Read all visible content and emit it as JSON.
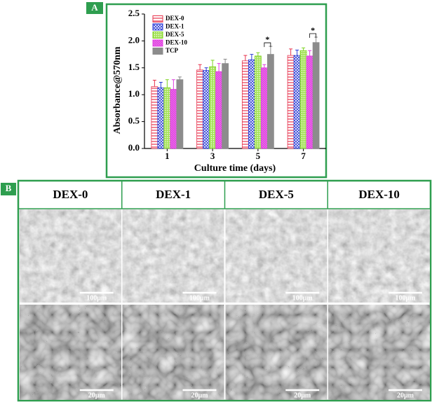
{
  "chart_data": {
    "type": "bar",
    "x_label": "Culture time (days)",
    "y_label": "Absorbance@570nm",
    "categories": [
      "1",
      "3",
      "5",
      "7"
    ],
    "series": [
      {
        "name": "DEX-0",
        "color": "#e8344e",
        "values": [
          1.15,
          1.46,
          1.63,
          1.73
        ],
        "errors": [
          0.12,
          0.1,
          0.1,
          0.12
        ]
      },
      {
        "name": "DEX-1",
        "color": "#2a3bd6",
        "values": [
          1.13,
          1.45,
          1.65,
          1.73
        ],
        "errors": [
          0.1,
          0.05,
          0.1,
          0.1
        ]
      },
      {
        "name": "DEX-5",
        "color": "#7ed321",
        "values": [
          1.13,
          1.52,
          1.72,
          1.82
        ],
        "errors": [
          0.15,
          0.12,
          0.06,
          0.05
        ]
      },
      {
        "name": "DEX-10",
        "color": "#e040e0",
        "values": [
          1.1,
          1.43,
          1.5,
          1.72
        ],
        "errors": [
          0.18,
          0.15,
          0.06,
          0.1
        ]
      },
      {
        "name": "TCP",
        "color": "#8c8c8c",
        "values": [
          1.28,
          1.58,
          1.75,
          1.97
        ],
        "errors": [
          0.05,
          0.08,
          0.15,
          0.1
        ]
      }
    ],
    "ylim": [
      0,
      2.5
    ],
    "yticks": [
      {
        "value": 0,
        "label": "0.0"
      },
      {
        "value": 0.5,
        "label": "0.5"
      },
      {
        "value": 1,
        "label": "1.0"
      },
      {
        "value": 1.5,
        "label": "1.5"
      },
      {
        "value": 2,
        "label": "2.0"
      },
      {
        "value": 2.5,
        "label": "2.5"
      }
    ],
    "legend": "upper left",
    "annotations": [
      {
        "text": "*",
        "category": "5"
      },
      {
        "text": "*",
        "category": "7"
      }
    ]
  },
  "panel_labels": [
    "A",
    "B"
  ],
  "panel_b": {
    "columns": [
      "DEX-0",
      "DEX-1",
      "DEX-5",
      "DEX-10"
    ],
    "scale_bars": [
      "100μm",
      "20μm"
    ]
  }
}
